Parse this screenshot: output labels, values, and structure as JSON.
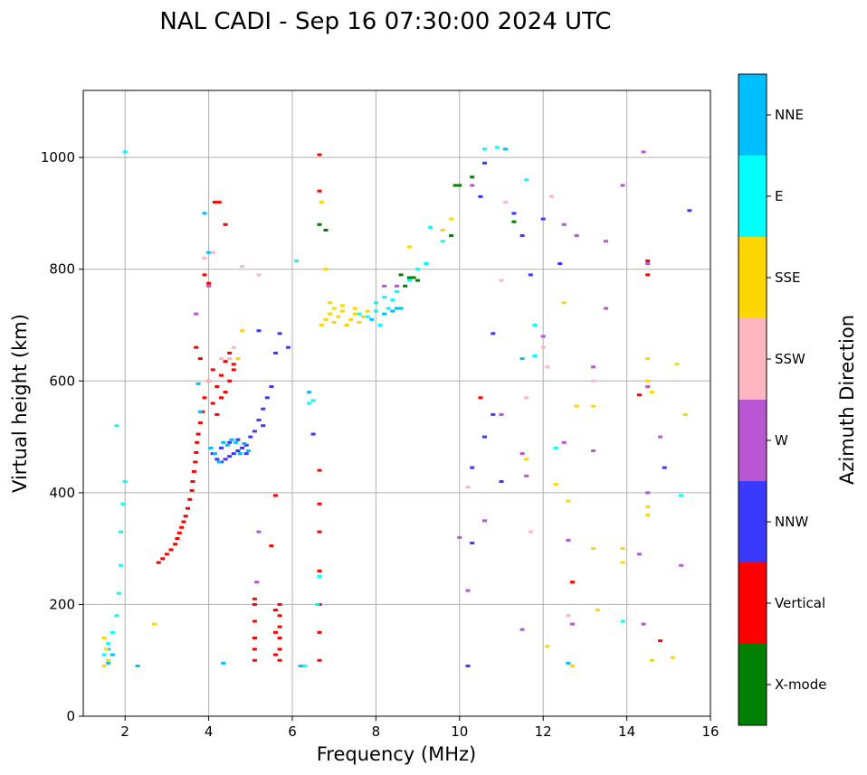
{
  "chart_data": {
    "type": "scatter",
    "title": "NAL CADI - Sep 16 07:30:00 2024 UTC",
    "xlabel": "Frequency (MHz)",
    "ylabel": "Virtual height (km)",
    "xlim": [
      1,
      16
    ],
    "ylim": [
      0,
      1120
    ],
    "xticks": [
      2,
      4,
      6,
      8,
      10,
      12,
      14,
      16
    ],
    "yticks": [
      0,
      200,
      400,
      600,
      800,
      1000
    ],
    "grid": true,
    "colorbar": {
      "title": "Azimuth Direction",
      "categories": [
        {
          "name": "NNE",
          "color": "#00bfff"
        },
        {
          "name": "E",
          "color": "#00ffff"
        },
        {
          "name": "SSE",
          "color": "#ffd700"
        },
        {
          "name": "SSW",
          "color": "#ffb6c1"
        },
        {
          "name": "W",
          "color": "#ba55d3"
        },
        {
          "name": "NNW",
          "color": "#3a3aff"
        },
        {
          "name": "Vertical",
          "color": "#ff0000"
        },
        {
          "name": "X-mode",
          "color": "#008000"
        }
      ]
    },
    "traces": [
      {
        "dir": "Vertical",
        "points": [
          [
            2.8,
            275
          ],
          [
            2.9,
            282
          ],
          [
            3.0,
            290
          ],
          [
            3.1,
            298
          ],
          [
            3.2,
            308
          ],
          [
            3.25,
            318
          ],
          [
            3.3,
            328
          ],
          [
            3.35,
            338
          ],
          [
            3.4,
            348
          ],
          [
            3.45,
            358
          ],
          [
            3.5,
            372
          ],
          [
            3.55,
            388
          ],
          [
            3.6,
            404
          ],
          [
            3.62,
            420
          ],
          [
            3.65,
            438
          ],
          [
            3.68,
            455
          ],
          [
            3.7,
            472
          ],
          [
            3.72,
            490
          ],
          [
            3.75,
            505
          ],
          [
            3.8,
            525
          ],
          [
            3.85,
            545
          ],
          [
            3.9,
            570
          ],
          [
            4.0,
            600
          ],
          [
            4.1,
            620
          ],
          [
            4.2,
            590
          ],
          [
            4.3,
            610
          ],
          [
            4.4,
            635
          ],
          [
            4.5,
            650
          ],
          [
            4.6,
            630
          ],
          [
            3.7,
            660
          ],
          [
            3.8,
            640
          ],
          [
            4.1,
            560
          ],
          [
            4.2,
            540
          ],
          [
            4.4,
            580
          ],
          [
            4.3,
            570
          ],
          [
            4.15,
            920
          ],
          [
            3.9,
            790
          ],
          [
            4.0,
            775
          ],
          [
            4.5,
            600
          ],
          [
            4.6,
            620
          ]
        ]
      },
      {
        "dir": "Vertical",
        "points": [
          [
            5.1,
            100
          ],
          [
            5.1,
            120
          ],
          [
            5.1,
            140
          ],
          [
            5.1,
            170
          ],
          [
            5.1,
            200
          ],
          [
            5.1,
            210
          ],
          [
            5.7,
            100
          ],
          [
            5.7,
            120
          ],
          [
            5.7,
            140
          ],
          [
            5.7,
            160
          ],
          [
            5.7,
            180
          ],
          [
            5.7,
            200
          ],
          [
            5.6,
            110
          ],
          [
            5.6,
            150
          ],
          [
            5.6,
            190
          ],
          [
            6.65,
            100
          ],
          [
            6.65,
            150
          ],
          [
            6.65,
            200
          ],
          [
            6.65,
            260
          ],
          [
            6.65,
            330
          ],
          [
            6.65,
            380
          ],
          [
            6.65,
            440
          ],
          [
            6.65,
            1005
          ],
          [
            6.65,
            940
          ],
          [
            5.1,
            140
          ],
          [
            4.25,
            920
          ],
          [
            4.4,
            880
          ],
          [
            14.5,
            790
          ],
          [
            14.5,
            815
          ],
          [
            14.8,
            135
          ],
          [
            12.7,
            240
          ],
          [
            10.5,
            570
          ],
          [
            14.3,
            575
          ],
          [
            5.5,
            305
          ],
          [
            5.6,
            395
          ]
        ]
      },
      {
        "dir": "NNW",
        "points": [
          [
            4.1,
            470
          ],
          [
            4.2,
            460
          ],
          [
            4.3,
            455
          ],
          [
            4.4,
            460
          ],
          [
            4.5,
            465
          ],
          [
            4.6,
            470
          ],
          [
            4.7,
            475
          ],
          [
            4.8,
            480
          ],
          [
            4.9,
            485
          ],
          [
            5.0,
            500
          ],
          [
            5.1,
            510
          ],
          [
            5.2,
            530
          ],
          [
            5.3,
            550
          ],
          [
            5.4,
            570
          ],
          [
            5.5,
            590
          ],
          [
            4.3,
            480
          ],
          [
            4.5,
            490
          ],
          [
            4.7,
            495
          ],
          [
            4.9,
            470
          ],
          [
            5.3,
            520
          ],
          [
            5.6,
            650
          ],
          [
            5.2,
            690
          ],
          [
            5.9,
            660
          ],
          [
            10.2,
            90
          ],
          [
            10.3,
            310
          ],
          [
            10.6,
            500
          ],
          [
            10.8,
            540
          ],
          [
            11.0,
            420
          ],
          [
            11.5,
            860
          ],
          [
            11.7,
            790
          ],
          [
            12.4,
            810
          ],
          [
            10.5,
            930
          ],
          [
            10.6,
            990
          ],
          [
            11.3,
            900
          ],
          [
            12.0,
            890
          ],
          [
            14.9,
            445
          ],
          [
            15.5,
            905
          ],
          [
            5.7,
            685
          ],
          [
            10.8,
            685
          ],
          [
            10.3,
            445
          ],
          [
            6.5,
            505
          ]
        ]
      },
      {
        "dir": "NNE",
        "points": [
          [
            4.05,
            480
          ],
          [
            4.15,
            470
          ],
          [
            4.25,
            455
          ],
          [
            4.35,
            490
          ],
          [
            4.45,
            485
          ],
          [
            4.55,
            495
          ],
          [
            4.65,
            490
          ],
          [
            4.75,
            470
          ],
          [
            4.85,
            488
          ],
          [
            4.95,
            475
          ],
          [
            8.2,
            720
          ],
          [
            8.4,
            725
          ],
          [
            8.5,
            730
          ],
          [
            8.6,
            730
          ],
          [
            7.9,
            710
          ],
          [
            3.75,
            595
          ],
          [
            3.8,
            545
          ],
          [
            1.6,
            120
          ],
          [
            1.7,
            110
          ],
          [
            1.6,
            95
          ],
          [
            4.35,
            95
          ],
          [
            6.2,
            90
          ],
          [
            2.3,
            90
          ],
          [
            3.9,
            900
          ],
          [
            4.0,
            830
          ],
          [
            6.4,
            580
          ],
          [
            12.6,
            95
          ],
          [
            11.5,
            640
          ],
          [
            11.1,
            1015
          ]
        ]
      },
      {
        "dir": "E",
        "points": [
          [
            8.0,
            740
          ],
          [
            8.2,
            750
          ],
          [
            8.5,
            760
          ],
          [
            8.8,
            780
          ],
          [
            9.0,
            800
          ],
          [
            9.2,
            810
          ],
          [
            8.0,
            725
          ],
          [
            8.1,
            700
          ],
          [
            7.8,
            715
          ],
          [
            7.6,
            720
          ],
          [
            8.3,
            730
          ],
          [
            8.4,
            745
          ],
          [
            1.5,
            110
          ],
          [
            1.6,
            130
          ],
          [
            1.7,
            150
          ],
          [
            1.8,
            180
          ],
          [
            1.85,
            220
          ],
          [
            1.9,
            270
          ],
          [
            1.9,
            330
          ],
          [
            1.95,
            380
          ],
          [
            2.0,
            420
          ],
          [
            1.8,
            520
          ],
          [
            2.0,
            1010
          ],
          [
            6.3,
            90
          ],
          [
            6.6,
            200
          ],
          [
            6.65,
            250
          ],
          [
            11.8,
            645
          ],
          [
            11.8,
            700
          ],
          [
            12.3,
            480
          ],
          [
            13.9,
            170
          ],
          [
            15.3,
            395
          ],
          [
            9.6,
            850
          ],
          [
            9.3,
            875
          ],
          [
            10.6,
            1015
          ],
          [
            10.9,
            1018
          ],
          [
            11.6,
            960
          ],
          [
            6.1,
            815
          ],
          [
            6.4,
            560
          ],
          [
            6.5,
            565
          ]
        ]
      },
      {
        "dir": "SSE",
        "points": [
          [
            6.8,
            710
          ],
          [
            6.9,
            720
          ],
          [
            7.0,
            705
          ],
          [
            7.1,
            715
          ],
          [
            7.2,
            725
          ],
          [
            7.3,
            700
          ],
          [
            7.4,
            710
          ],
          [
            7.5,
            720
          ],
          [
            7.6,
            705
          ],
          [
            7.7,
            715
          ],
          [
            7.8,
            725
          ],
          [
            7.0,
            730
          ],
          [
            7.2,
            735
          ],
          [
            7.5,
            730
          ],
          [
            6.7,
            700
          ],
          [
            6.9,
            740
          ],
          [
            1.5,
            140
          ],
          [
            1.55,
            120
          ],
          [
            1.6,
            100
          ],
          [
            1.5,
            90
          ],
          [
            12.7,
            90
          ],
          [
            12.5,
            740
          ],
          [
            12.6,
            385
          ],
          [
            12.8,
            555
          ],
          [
            13.2,
            555
          ],
          [
            13.2,
            300
          ],
          [
            13.3,
            190
          ],
          [
            13.9,
            300
          ],
          [
            13.9,
            275
          ],
          [
            14.5,
            375
          ],
          [
            14.5,
            360
          ],
          [
            14.5,
            640
          ],
          [
            14.5,
            600
          ],
          [
            14.6,
            580
          ],
          [
            14.6,
            100
          ],
          [
            15.2,
            630
          ],
          [
            15.4,
            540
          ],
          [
            15.1,
            105
          ],
          [
            6.7,
            920
          ],
          [
            6.8,
            800
          ],
          [
            4.7,
            640
          ],
          [
            4.8,
            690
          ],
          [
            2.7,
            165
          ],
          [
            8.8,
            840
          ],
          [
            9.6,
            870
          ],
          [
            9.8,
            890
          ],
          [
            12.1,
            125
          ],
          [
            11.6,
            460
          ],
          [
            12.3,
            415
          ]
        ]
      },
      {
        "dir": "W",
        "points": [
          [
            8.2,
            770
          ],
          [
            8.5,
            770
          ],
          [
            10.3,
            950
          ],
          [
            11.0,
            540
          ],
          [
            11.6,
            430
          ],
          [
            11.5,
            155
          ],
          [
            12.0,
            680
          ],
          [
            12.5,
            880
          ],
          [
            12.6,
            315
          ],
          [
            12.7,
            165
          ],
          [
            12.8,
            860
          ],
          [
            13.2,
            625
          ],
          [
            13.2,
            475
          ],
          [
            13.5,
            850
          ],
          [
            13.5,
            730
          ],
          [
            13.9,
            950
          ],
          [
            14.3,
            290
          ],
          [
            14.5,
            400
          ],
          [
            14.5,
            590
          ],
          [
            14.5,
            810
          ],
          [
            14.8,
            500
          ],
          [
            15.3,
            270
          ],
          [
            14.4,
            165
          ],
          [
            14.4,
            1010
          ],
          [
            5.2,
            330
          ],
          [
            5.15,
            240
          ],
          [
            4.0,
            770
          ],
          [
            3.7,
            720
          ],
          [
            10.2,
            225
          ],
          [
            10.0,
            320
          ],
          [
            10.6,
            350
          ],
          [
            12.5,
            490
          ],
          [
            11.5,
            470
          ]
        ]
      },
      {
        "dir": "SSW",
        "points": [
          [
            4.6,
            660
          ],
          [
            4.5,
            640
          ],
          [
            4.0,
            600
          ],
          [
            4.3,
            640
          ],
          [
            11.0,
            780
          ],
          [
            11.6,
            570
          ],
          [
            11.7,
            330
          ],
          [
            12.0,
            660
          ],
          [
            12.1,
            625
          ],
          [
            12.2,
            930
          ],
          [
            12.6,
            180
          ],
          [
            13.2,
            600
          ],
          [
            10.2,
            410
          ],
          [
            11.1,
            920
          ],
          [
            4.8,
            805
          ],
          [
            5.2,
            790
          ],
          [
            3.9,
            820
          ],
          [
            4.1,
            830
          ]
        ]
      },
      {
        "dir": "X-mode",
        "points": [
          [
            8.6,
            790
          ],
          [
            8.8,
            785
          ],
          [
            8.9,
            785
          ],
          [
            9.0,
            780
          ],
          [
            8.7,
            770
          ],
          [
            10.3,
            965
          ],
          [
            9.9,
            950
          ],
          [
            11.3,
            885
          ],
          [
            6.8,
            870
          ],
          [
            6.65,
            880
          ],
          [
            9.8,
            860
          ],
          [
            10.0,
            950
          ]
        ]
      }
    ]
  }
}
